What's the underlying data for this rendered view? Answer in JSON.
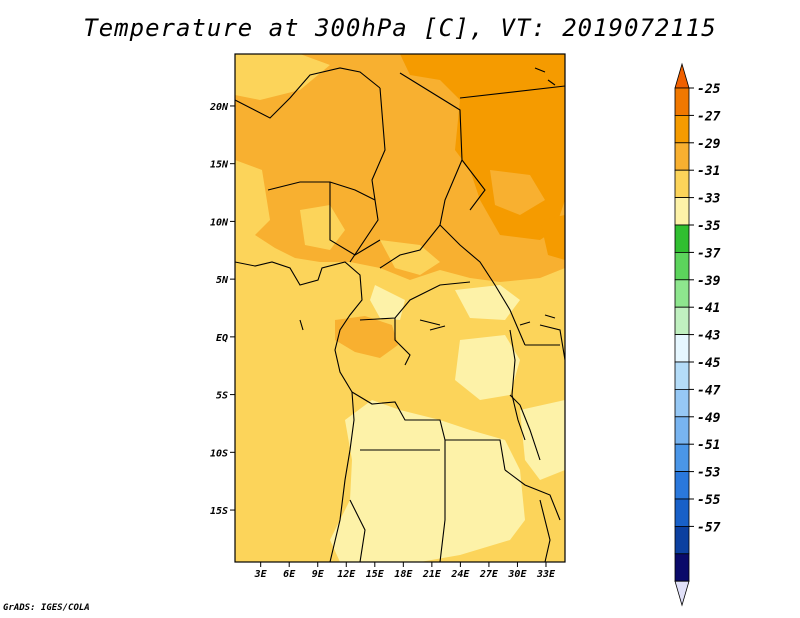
{
  "chart_data": {
    "type": "heatmap",
    "title": "Temperature at 300hPa [C], VT: 2019072115",
    "x_tick_labels": [
      "3E",
      "6E",
      "9E",
      "12E",
      "15E",
      "18E",
      "21E",
      "24E",
      "27E",
      "30E",
      "33E"
    ],
    "x_tick_values": [
      3,
      6,
      9,
      12,
      15,
      18,
      21,
      24,
      27,
      30,
      33
    ],
    "y_tick_labels": [
      "20N",
      "15N",
      "10N",
      "5N",
      "EQ",
      "5S",
      "10S",
      "15S"
    ],
    "y_tick_values": [
      20,
      15,
      10,
      5,
      0,
      -5,
      -10,
      -15
    ],
    "xlim": [
      0.3,
      35
    ],
    "ylim": [
      -19.5,
      24.5
    ],
    "colorbar": {
      "labels": [
        "-25",
        "-27",
        "-29",
        "-31",
        "-33",
        "-35",
        "-37",
        "-39",
        "-41",
        "-43",
        "-45",
        "-47",
        "-49",
        "-51",
        "-53",
        "-55",
        "-57"
      ],
      "colors": [
        "#f06000",
        "#f07800",
        "#f59b00",
        "#f8b030",
        "#fcd45a",
        "#fdf2a8",
        "#30bf30",
        "#5cd45c",
        "#8ee68e",
        "#c0f0c0",
        "#e6f7ff",
        "#b4dcf8",
        "#96c8f5",
        "#78b4f0",
        "#4a96e8",
        "#2a78dc",
        "#1860c8",
        "#0c40a0",
        "#0a0a6a",
        "#e0e0f8"
      ]
    },
    "regions": [
      {
        "level": "-27 to -29",
        "color": "#f59b00",
        "x_range": [
          21,
          35
        ],
        "y_range": [
          8,
          24.5
        ]
      },
      {
        "level": "-29 to -31",
        "color": "#f8b030",
        "x_range": [
          0.3,
          35
        ],
        "y_range": [
          5,
          24.5
        ]
      },
      {
        "level": "-31 to -33",
        "color": "#fcd45a",
        "x_range": [
          0.3,
          35
        ],
        "y_range": [
          -19.5,
          5
        ]
      },
      {
        "level": "-33 to -35",
        "color": "#fdf2a8",
        "x_range": [
          12,
          35
        ],
        "y_range": [
          -19.5,
          -8
        ]
      }
    ]
  },
  "credit": "GrADS: IGES/COLA"
}
